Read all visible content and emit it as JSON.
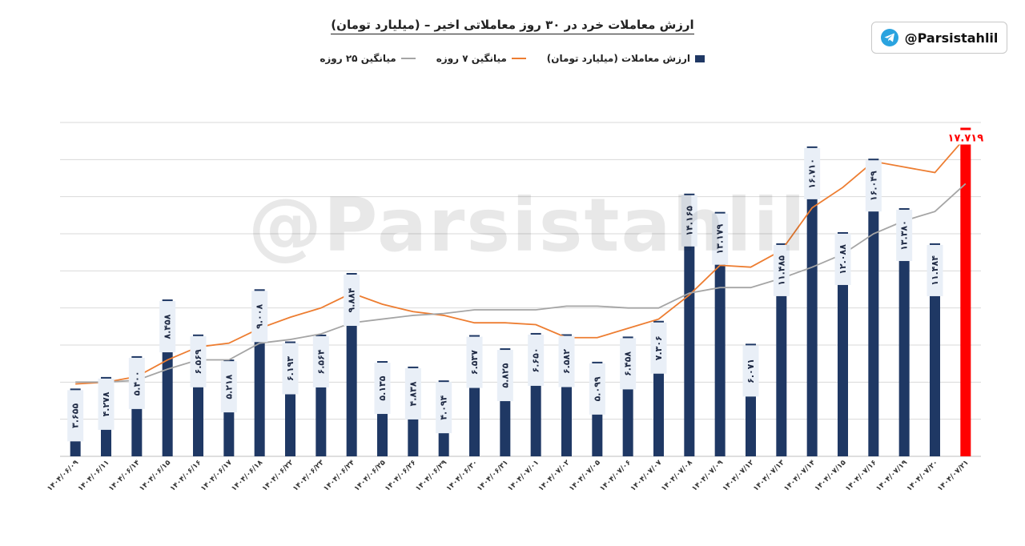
{
  "title": "ارزش معاملات خرد در ۳۰ روز معاملاتی اخیر – (میلیارد تومان)",
  "handle": "@Parsistahlil",
  "watermark": "@Parsistahlil",
  "colors": {
    "bar": "#1f3864",
    "last_bar": "#ff0000",
    "ma7": "#ed7d31",
    "ma25": "#a5a5a5",
    "label_bg": "#e9eff7",
    "grid": "#d9d9d9"
  },
  "chart_data": {
    "type": "bar",
    "title": "ارزش معاملات خرد در ۳۰ روز معاملاتی اخیر – (میلیارد تومان)",
    "xlabel": "",
    "ylabel": "",
    "ylim": [
      0,
      18
    ],
    "grid": true,
    "legend_position": "top",
    "categories": [
      "۱۴۰۴/۰۶/۰۹",
      "۱۴۰۴/۰۶/۱۱",
      "۱۴۰۴/۰۶/۱۴",
      "۱۴۰۴/۰۶/۱۵",
      "۱۴۰۴/۰۶/۱۶",
      "۱۴۰۴/۰۶/۱۷",
      "۱۴۰۴/۰۶/۱۸",
      "۱۴۰۴/۰۶/۲۲",
      "۱۴۰۴/۰۶/۲۳",
      "۱۴۰۴/۰۶/۲۴",
      "۱۴۰۴/۰۶/۲۵",
      "۱۴۰۴/۰۶/۲۶",
      "۱۴۰۴/۰۶/۲۹",
      "۱۴۰۴/۰۶/۳۰",
      "۱۴۰۴/۰۶/۳۱",
      "۱۴۰۴/۰۷/۰۱",
      "۱۴۰۴/۰۷/۰۲",
      "۱۴۰۴/۰۷/۰۵",
      "۱۴۰۴/۰۷/۰۶",
      "۱۴۰۴/۰۷/۰۷",
      "۱۴۰۴/۰۷/۰۸",
      "۱۴۰۴/۰۷/۰۹",
      "۱۴۰۴/۰۷/۱۲",
      "۱۴۰۴/۰۷/۱۳",
      "۱۴۰۴/۰۷/۱۴",
      "۱۴۰۴/۰۷/۱۵",
      "۱۴۰۴/۰۷/۱۶",
      "۱۴۰۴/۰۷/۱۹",
      "۱۴۰۴/۰۷/۲۰",
      "۱۴۰۴/۰۷/۲۱"
    ],
    "series": [
      {
        "name": "ارزش معاملات (میلیارد تومان)",
        "kind": "bar",
        "values": [
          3.655,
          4.278,
          5.4,
          8.458,
          6.569,
          5.218,
          9.008,
          6.193,
          6.564,
          9.884,
          5.135,
          4.838,
          4.094,
          6.537,
          5.825,
          6.65,
          6.582,
          5.099,
          6.458,
          7.306,
          14.165,
          13.179,
          6.071,
          11.485,
          16.71,
          12.088,
          16.049,
          13.38,
          11.484,
          17.719
        ],
        "labels": [
          "۳.۶۵۵",
          "۴.۲۷۸",
          "۵.۴۰۰",
          "۸.۴۵۸",
          "۶.۵۶۹",
          "۵.۲۱۸",
          "۹.۰۰۸",
          "۶.۱۹۳",
          "۶.۵۶۴",
          "۹.۸۸۴",
          "۵.۱۳۵",
          "۴.۸۳۸",
          "۴.۰۹۴",
          "۶.۵۳۷",
          "۵.۸۲۵",
          "۶.۶۵۰",
          "۶.۵۸۲",
          "۵.۰۹۹",
          "۶.۴۵۸",
          "۷.۳۰۶",
          "۱۴.۱۶۵",
          "۱۳.۱۷۹",
          "۶.۰۷۱",
          "۱۱.۴۸۵",
          "۱۶.۷۱۰",
          "۱۲.۰۸۸",
          "۱۶.۰۴۹",
          "۱۳.۳۸۰",
          "۱۱.۴۸۴",
          "۱۷.۷۱۹"
        ]
      },
      {
        "name": "میانگین ۷ روزه",
        "kind": "line",
        "values": [
          3.9,
          4.0,
          4.3,
          5.2,
          5.9,
          6.1,
          6.9,
          7.5,
          8.0,
          8.8,
          8.2,
          7.8,
          7.6,
          7.2,
          7.2,
          7.1,
          6.4,
          6.4,
          6.9,
          7.4,
          8.7,
          10.3,
          10.2,
          11.1,
          13.4,
          14.5,
          15.9,
          15.6,
          15.3,
          17.2
        ]
      },
      {
        "name": "میانگین ۲۵ روزه",
        "kind": "line",
        "values": [
          4.0,
          4.0,
          4.1,
          4.7,
          5.2,
          5.2,
          6.1,
          6.3,
          6.6,
          7.2,
          7.4,
          7.6,
          7.7,
          7.9,
          7.9,
          7.9,
          8.1,
          8.1,
          8.0,
          8.0,
          8.8,
          9.1,
          9.1,
          9.6,
          10.2,
          10.9,
          12.0,
          12.7,
          13.2,
          14.7
        ]
      }
    ]
  }
}
